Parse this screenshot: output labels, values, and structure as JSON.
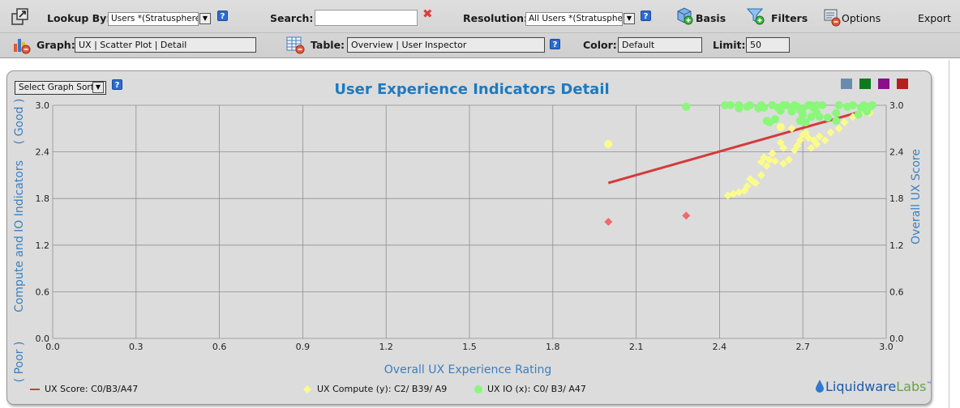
{
  "toolbar": {
    "lookup_label": "Lookup By:",
    "lookup_value": "Users *(Stratusphere)",
    "search_label": "Search:",
    "search_value": "",
    "resolution_label": "Resolution:",
    "resolution_value": "All Users *(Stratusphere)",
    "basis_label": "Basis",
    "filters_label": "Filters",
    "options_label": "Options",
    "export_label": "Export",
    "graph_label": "Graph:",
    "graph_value": "UX | Scatter Plot | Detail",
    "table_label": "Table:",
    "table_value": "Overview | User Inspector",
    "color_label": "Color:",
    "color_value": "Default",
    "limit_label": "Limit:",
    "limit_value": "50"
  },
  "panel": {
    "sort_label": "Select Graph Sort",
    "swatch_colors": [
      "#6a8bb0",
      "#0d7a1f",
      "#8b0f8b",
      "#b42020"
    ]
  },
  "brand": {
    "part1": "Liquidware",
    "part2": "Labs",
    "tm": "™"
  },
  "chart_data": {
    "type": "scatter",
    "title": "User Experience Indicators Detail",
    "xlabel": "Overall UX Experience Rating",
    "ylabel_left": "Compute and IO Indicators",
    "ylabel_left_good": "( Good )",
    "ylabel_left_poor": "( Poor )",
    "ylabel_right": "Overall UX Score",
    "xlim": [
      0.0,
      3.0
    ],
    "ylim": [
      0.0,
      3.0
    ],
    "x_ticks": [
      "0.0",
      "0.3",
      "0.6",
      "0.9",
      "1.2",
      "1.5",
      "1.8",
      "2.1",
      "2.4",
      "2.7",
      "3.0"
    ],
    "y_ticks": [
      "0.0",
      "0.6",
      "1.2",
      "1.8",
      "2.4",
      "3.0"
    ],
    "grid": true,
    "legend_position": "bottom",
    "series": [
      {
        "name": "UX Score: C0/B3/A47",
        "kind": "line",
        "color": "#d63a3a",
        "points": [
          [
            2.0,
            2.0
          ],
          [
            2.95,
            2.96
          ]
        ]
      },
      {
        "name": "UX Compute (y): C2/ B39/ A9",
        "kind": "diamond",
        "color": "#fbfb8c",
        "points": [
          [
            2.43,
            1.84
          ],
          [
            2.45,
            1.86
          ],
          [
            2.47,
            1.88
          ],
          [
            2.49,
            1.9
          ],
          [
            2.5,
            1.96
          ],
          [
            2.52,
            2.02
          ],
          [
            2.53,
            2.0
          ],
          [
            2.55,
            2.1
          ],
          [
            2.55,
            2.27
          ],
          [
            2.56,
            2.33
          ],
          [
            2.57,
            2.22
          ],
          [
            2.58,
            2.3
          ],
          [
            2.6,
            2.28
          ],
          [
            2.62,
            2.52
          ],
          [
            2.63,
            2.25
          ],
          [
            2.65,
            2.3
          ],
          [
            2.67,
            2.42
          ],
          [
            2.68,
            2.48
          ],
          [
            2.69,
            2.55
          ],
          [
            2.7,
            2.62
          ],
          [
            2.72,
            2.58
          ],
          [
            2.73,
            2.45
          ],
          [
            2.74,
            2.55
          ],
          [
            2.75,
            2.5
          ],
          [
            2.76,
            2.6
          ],
          [
            2.78,
            2.55
          ],
          [
            2.8,
            2.65
          ],
          [
            2.83,
            2.7
          ],
          [
            2.85,
            2.78
          ],
          [
            2.88,
            2.85
          ],
          [
            2.9,
            2.88
          ],
          [
            2.92,
            2.92
          ],
          [
            2.93,
            2.95
          ],
          [
            2.94,
            2.9
          ],
          [
            2.66,
            2.7
          ],
          [
            2.71,
            2.65
          ],
          [
            2.63,
            2.45
          ],
          [
            2.59,
            2.38
          ],
          [
            2.51,
            2.05
          ]
        ]
      },
      {
        "name": "",
        "kind": "circle",
        "color": "#fbfb8c",
        "points": [
          [
            2.0,
            2.5
          ],
          [
            2.62,
            2.72
          ]
        ]
      },
      {
        "name": "",
        "kind": "diamond",
        "color": "#f06a6a",
        "points": [
          [
            2.0,
            1.5
          ],
          [
            2.28,
            1.58
          ]
        ]
      },
      {
        "name": "UX IO (x): C0/ B3/ A47",
        "kind": "circle",
        "color": "#8af77a",
        "points": [
          [
            2.28,
            2.98
          ],
          [
            2.42,
            3.0
          ],
          [
            2.44,
            3.0
          ],
          [
            2.47,
            3.0
          ],
          [
            2.5,
            2.98
          ],
          [
            2.51,
            3.0
          ],
          [
            2.54,
            2.96
          ],
          [
            2.56,
            2.97
          ],
          [
            2.59,
            3.0
          ],
          [
            2.61,
            2.97
          ],
          [
            2.63,
            3.0
          ],
          [
            2.64,
            3.0
          ],
          [
            2.66,
            2.97
          ],
          [
            2.67,
            3.0
          ],
          [
            2.69,
            2.94
          ],
          [
            2.7,
            2.96
          ],
          [
            2.72,
            3.0
          ],
          [
            2.73,
            3.0
          ],
          [
            2.75,
            3.0
          ],
          [
            2.77,
            3.0
          ],
          [
            2.83,
            3.0
          ],
          [
            2.88,
            3.0
          ],
          [
            2.91,
            2.97
          ],
          [
            2.92,
            3.0
          ],
          [
            2.94,
            2.98
          ],
          [
            2.95,
            3.0
          ],
          [
            2.57,
            2.8
          ],
          [
            2.58,
            2.78
          ],
          [
            2.6,
            2.82
          ],
          [
            2.69,
            2.8
          ],
          [
            2.7,
            2.88
          ],
          [
            2.71,
            2.78
          ],
          [
            2.73,
            2.85
          ],
          [
            2.75,
            2.9
          ],
          [
            2.82,
            2.9
          ],
          [
            2.9,
            2.88
          ],
          [
            2.93,
            2.92
          ],
          [
            2.66,
            2.92
          ],
          [
            2.74,
            2.96
          ],
          [
            2.79,
            2.84
          ],
          [
            2.68,
            2.98
          ],
          [
            2.86,
            2.98
          ],
          [
            2.62,
            2.93
          ],
          [
            2.55,
            3.0
          ],
          [
            2.47,
            2.96
          ],
          [
            2.82,
            2.8
          ],
          [
            2.76,
            2.85
          ]
        ]
      }
    ]
  }
}
